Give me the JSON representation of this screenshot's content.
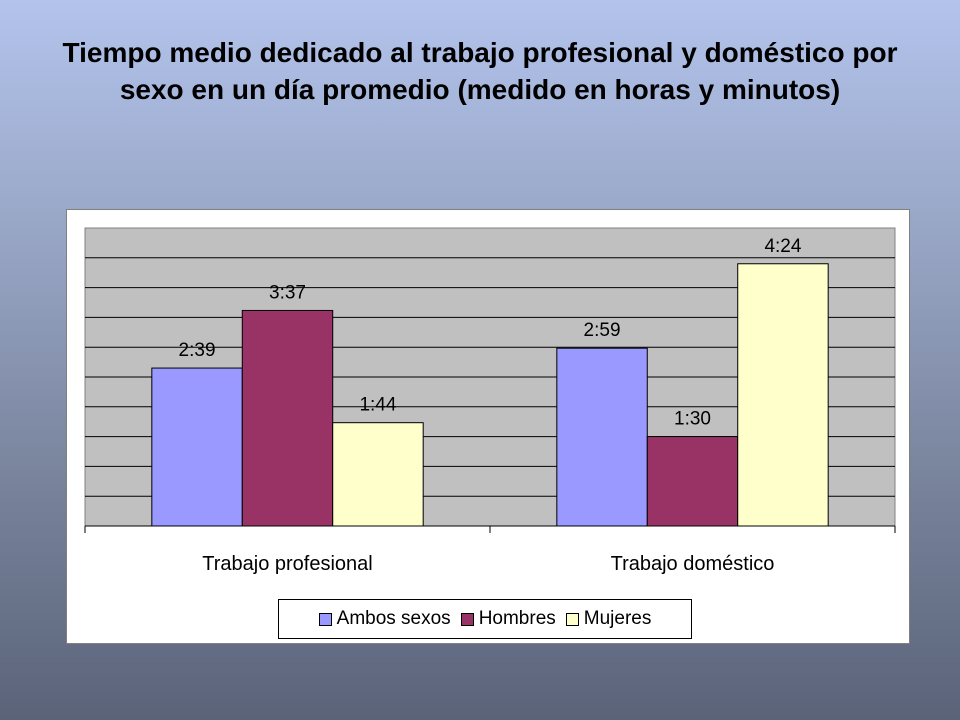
{
  "title": "Tiempo medio dedicado al trabajo profesional y doméstico por sexo en un día promedio (medido en horas y minutos)",
  "chart_data": {
    "type": "bar",
    "title": "Tiempo medio dedicado al trabajo profesional y doméstico por sexo en un día promedio (medido en horas y minutos)",
    "categories": [
      "Trabajo profesional",
      "Trabajo doméstico"
    ],
    "series": [
      {
        "name": "Ambos sexos",
        "values": [
          159,
          179
        ],
        "labels": [
          "2:39",
          "2:59"
        ],
        "color": "#9999ff"
      },
      {
        "name": "Hombres",
        "values": [
          217,
          90
        ],
        "labels": [
          "3:37",
          "1:30"
        ],
        "color": "#993366"
      },
      {
        "name": "Mujeres",
        "values": [
          104,
          264
        ],
        "labels": [
          "1:44",
          "4:24"
        ],
        "color": "#ffffcc"
      }
    ],
    "ylim": [
      0,
      300
    ],
    "value_unit": "minutes",
    "grid": true,
    "plot_background": "#c0c0c0",
    "legend_position": "bottom"
  }
}
